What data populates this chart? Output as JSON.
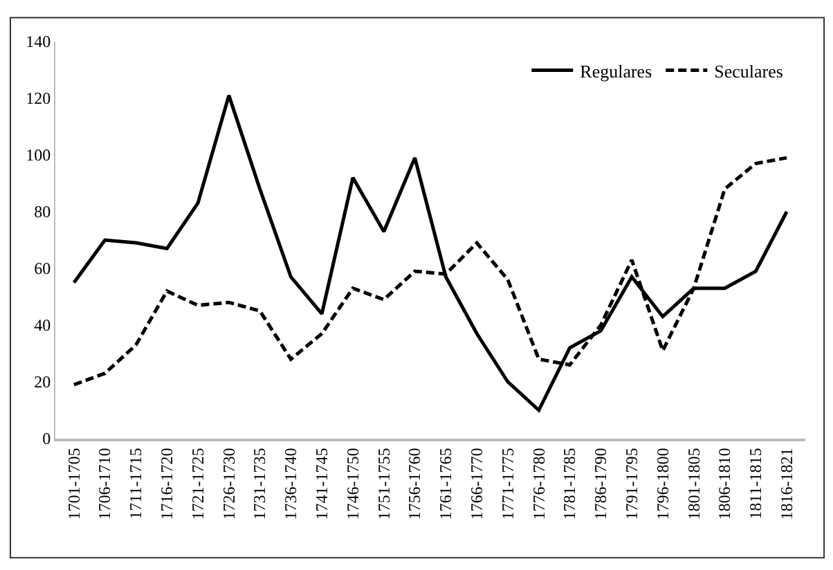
{
  "chart_data": {
    "type": "line",
    "categories": [
      "1701-1705",
      "1706-1710",
      "1711-1715",
      "1716-1720",
      "1721-1725",
      "1726-1730",
      "1731-1735",
      "1736-1740",
      "1741-1745",
      "1746-1750",
      "1751-1755",
      "1756-1760",
      "1761-1765",
      "1766-1770",
      "1771-1775",
      "1776-1780",
      "1781-1785",
      "1786-1790",
      "1791-1795",
      "1796-1800",
      "1801-1805",
      "1806-1810",
      "1811-1815",
      "1816-1821"
    ],
    "series": [
      {
        "name": "Regulares",
        "color": "#000000",
        "line_style": "solid",
        "values": [
          55,
          70,
          69,
          67,
          83,
          121,
          88,
          57,
          44,
          92,
          73,
          99,
          57,
          37,
          20,
          10,
          32,
          38,
          57,
          43,
          53,
          53,
          59,
          80
        ]
      },
      {
        "name": "Seculares",
        "color": "#000000",
        "line_style": "dashed",
        "values": [
          19,
          23,
          33,
          52,
          47,
          48,
          45,
          28,
          37,
          53,
          49,
          59,
          58,
          69,
          56,
          28,
          26,
          40,
          63,
          31,
          53,
          88,
          97,
          99
        ]
      }
    ],
    "ylim": [
      0,
      140
    ],
    "yticks": [
      0,
      20,
      40,
      60,
      80,
      100,
      120,
      140
    ],
    "grid": false,
    "legend": "top right",
    "marker": "none"
  }
}
